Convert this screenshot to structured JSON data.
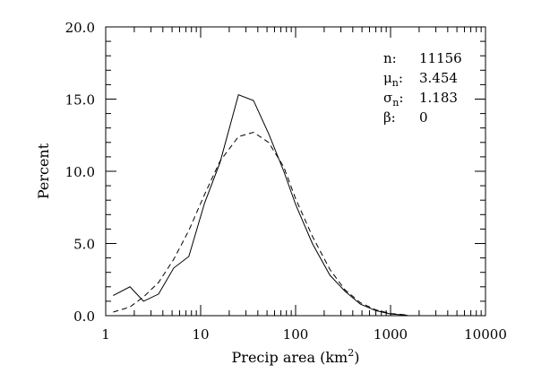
{
  "chart_data": {
    "type": "line",
    "title": "",
    "xlabel": "Precip area (km",
    "xlabel_superscript": "2",
    "xlabel_suffix": ")",
    "ylabel": "Percent",
    "xscale": "log",
    "xlim": [
      1,
      10000
    ],
    "ylim": [
      0,
      20
    ],
    "x_ticks": [
      1,
      10,
      100,
      1000,
      10000
    ],
    "x_tick_labels": [
      "1",
      "10",
      "100",
      "1000",
      "10000"
    ],
    "y_ticks": [
      0,
      5,
      10,
      15,
      20
    ],
    "y_tick_labels": [
      "0.0",
      "5.0",
      "10.0",
      "15.0",
      "20.0"
    ],
    "grid": false,
    "series": [
      {
        "style": "solid",
        "color": "#000000",
        "x": [
          1.2,
          1.8,
          2.5,
          3.6,
          5.2,
          7.5,
          11,
          16,
          25,
          36,
          52,
          75,
          100,
          150,
          230,
          330,
          480,
          700,
          1000,
          1500
        ],
        "y": [
          1.4,
          2.0,
          1.0,
          1.5,
          3.3,
          4.1,
          7.8,
          10.6,
          15.3,
          14.9,
          12.6,
          10.0,
          7.7,
          5.0,
          2.8,
          1.7,
          0.8,
          0.35,
          0.12,
          0.03
        ]
      },
      {
        "style": "dashed",
        "color": "#000000",
        "x": [
          1.2,
          1.8,
          2.5,
          3.6,
          5.2,
          7.5,
          11,
          16,
          25,
          36,
          52,
          75,
          100,
          150,
          230,
          330,
          480,
          700,
          1000,
          1500
        ],
        "y": [
          0.25,
          0.6,
          1.3,
          2.3,
          3.9,
          5.9,
          8.4,
          10.7,
          12.4,
          12.7,
          12.0,
          10.3,
          8.1,
          5.5,
          3.2,
          1.8,
          0.9,
          0.4,
          0.15,
          0.05
        ]
      }
    ],
    "stats": [
      {
        "label": "n",
        "sub": "",
        "sep": ":",
        "value": "11156"
      },
      {
        "label": "μ",
        "sub": "n",
        "sep": ":",
        "value": "3.454"
      },
      {
        "label": "σ",
        "sub": "n",
        "sep": ":",
        "value": "1.183"
      },
      {
        "label": "β",
        "sub": "",
        "sep": ":",
        "value": "0"
      }
    ]
  }
}
